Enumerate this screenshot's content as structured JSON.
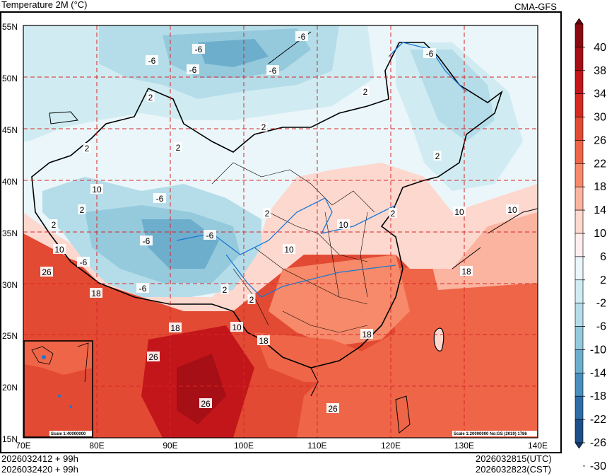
{
  "title": "Temperature  2M (°C)",
  "source": "CMA-GFS",
  "footer": {
    "left_line1": "2026032412 + 99h",
    "left_line2": "2026032420 + 99h",
    "right_line1": "2026032815(UTC)",
    "right_line2": "2026032823(CST)"
  },
  "axes": {
    "lat_ticks": [
      "55N",
      "50N",
      "45N",
      "40N",
      "35N",
      "30N",
      "25N",
      "20N",
      "15N"
    ],
    "lon_ticks": [
      "70E",
      "80E",
      "90E",
      "100E",
      "110E",
      "120E",
      "130E",
      "140E"
    ]
  },
  "colorbar": {
    "levels": [
      "40",
      "38",
      "34",
      "30",
      "26",
      "22",
      "18",
      "14",
      "10",
      "6",
      "2",
      "-2",
      "-6",
      "-10",
      "-14",
      "-18",
      "-22",
      "-26",
      "-30"
    ],
    "colors": [
      "#67000d",
      "#8b0a10",
      "#a50f15",
      "#c3161b",
      "#d42a22",
      "#e34a33",
      "#ef6548",
      "#f68a6a",
      "#fbb4a0",
      "#fdd8cf",
      "#ffeeee",
      "#eaf6f9",
      "#d0ecf2",
      "#b5dde9",
      "#95cadd",
      "#6eaecd",
      "#4a8fbe",
      "#2e6da7",
      "#1f4f8a",
      "#123a6a"
    ]
  },
  "contour_labels": [
    "-6",
    "-6",
    "-6",
    "-6",
    "-6",
    "-6",
    "2",
    "2",
    "2",
    "2",
    "2",
    "2",
    "2",
    "2",
    "2",
    "2",
    "10",
    "10",
    "10",
    "10",
    "10",
    "10",
    "18",
    "18",
    "18",
    "18",
    "18",
    "26",
    "26",
    "26",
    "26",
    "-6",
    "-6",
    "-6",
    "-6",
    "-6",
    "2",
    "2",
    "10"
  ],
  "inset_scale": "Scale 1:40000000",
  "map_note": "Scale 1:20000000 No:GS (2019) 1786"
}
